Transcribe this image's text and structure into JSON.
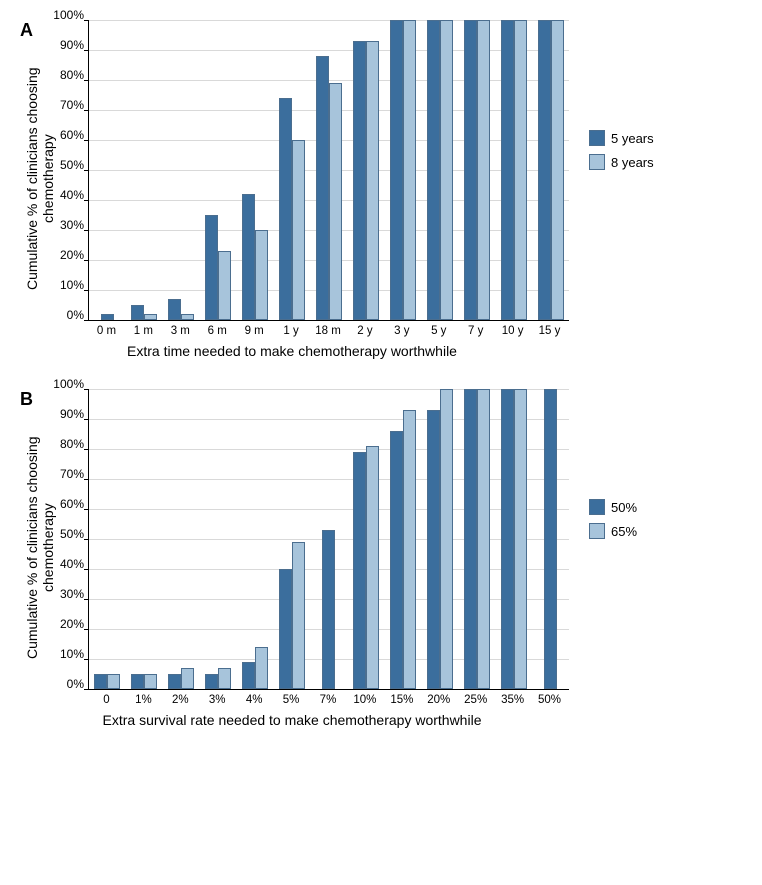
{
  "colors": {
    "series1": "#3b6e9d",
    "series2": "#a7c4db",
    "barBorder": "#4b6e8f",
    "grid": "#d9d9d9",
    "background": "#ffffff"
  },
  "yTicks": [
    "100%",
    "90%",
    "80%",
    "70%",
    "60%",
    "50%",
    "40%",
    "30%",
    "20%",
    "10%",
    "0%"
  ],
  "yTickPositions": [
    100,
    90,
    80,
    70,
    60,
    50,
    40,
    30,
    20,
    10,
    0
  ],
  "panelA": {
    "label": "A",
    "yTitle": "Cumulative % of clinicians choosing chemotherapy",
    "xTitle": "Extra time needed to make chemotherapy worthwhile",
    "categories": [
      "0 m",
      "1 m",
      "3 m",
      "6 m",
      "9 m",
      "1 y",
      "18 m",
      "2 y",
      "3 y",
      "5 y",
      "7 y",
      "10 y",
      "15 y"
    ],
    "series1": {
      "label": "5 years",
      "values": [
        2,
        5,
        7,
        35,
        42,
        74,
        88,
        93,
        100,
        100,
        100,
        100,
        100
      ]
    },
    "series2": {
      "label": "8 years",
      "values": [
        0,
        2,
        2,
        23,
        30,
        60,
        79,
        93,
        100,
        100,
        100,
        100,
        100
      ]
    }
  },
  "panelB": {
    "label": "B",
    "yTitle": "Cumulative % of clinicians choosing chemotherapy",
    "xTitle": "Extra survival rate needed to make chemotherapy worthwhile",
    "categories": [
      "0",
      "1%",
      "2%",
      "3%",
      "4%",
      "5%",
      "7%",
      "10%",
      "15%",
      "20%",
      "25%",
      "35%",
      "50%"
    ],
    "series1": {
      "label": "50%",
      "values": [
        5,
        5,
        5,
        5,
        9,
        40,
        53,
        79,
        86,
        93,
        100,
        100,
        100
      ]
    },
    "series2": {
      "label": "65%",
      "values": [
        5,
        5,
        7,
        7,
        14,
        49,
        0,
        81,
        93,
        100,
        100,
        100,
        0
      ]
    }
  },
  "chart": {
    "barWidthPx": 13,
    "plotWidthPx": 480,
    "plotHeightPx": 300,
    "fontBase": "Arial, sans-serif",
    "titleFontSize": 14,
    "tickFontSize": 12,
    "legendFontSize": 13,
    "panelLabelFontSize": 18
  }
}
